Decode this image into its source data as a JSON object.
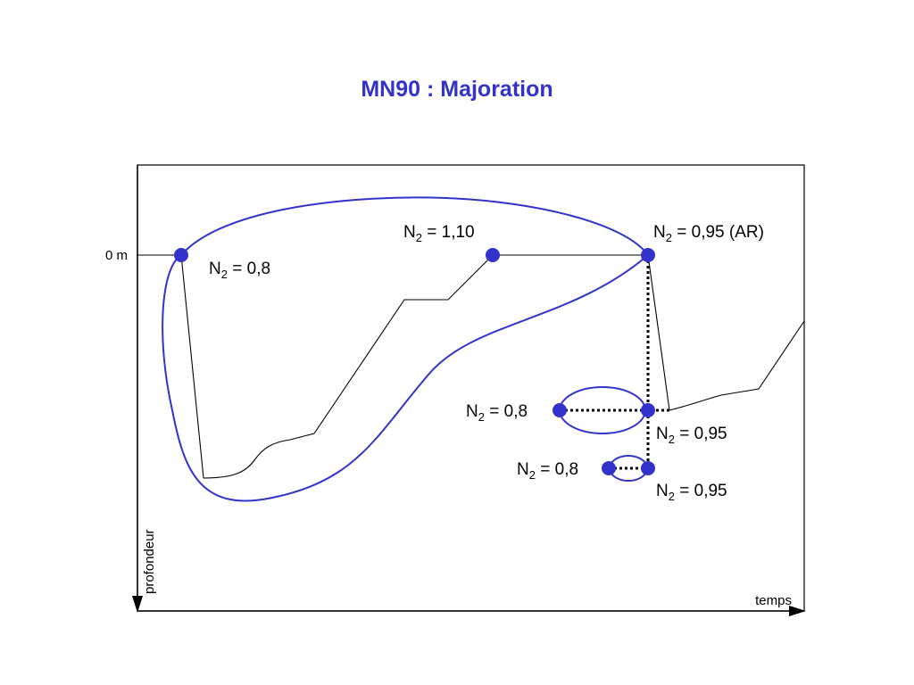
{
  "title": "MN90 : Majoration",
  "colors": {
    "accent": "#3333cc",
    "line": "#000000"
  },
  "axes": {
    "surface_label": "0 m",
    "y_label": "profondeur",
    "x_label": "temps"
  },
  "labels": [
    {
      "n": "N",
      "sub": "2",
      "value": " = 0,8"
    },
    {
      "n": "N",
      "sub": "2",
      "value": " = 1,10"
    },
    {
      "n": "N",
      "sub": "2",
      "value": " = 0,95 (AR)"
    },
    {
      "n": "N",
      "sub": "2",
      "value": " = 0,8"
    },
    {
      "n": "N",
      "sub": "2",
      "value": " = 0,95"
    },
    {
      "n": "N",
      "sub": "2",
      "value": " = 0,8"
    },
    {
      "n": "N",
      "sub": "2",
      "value": " = 0,95"
    }
  ]
}
